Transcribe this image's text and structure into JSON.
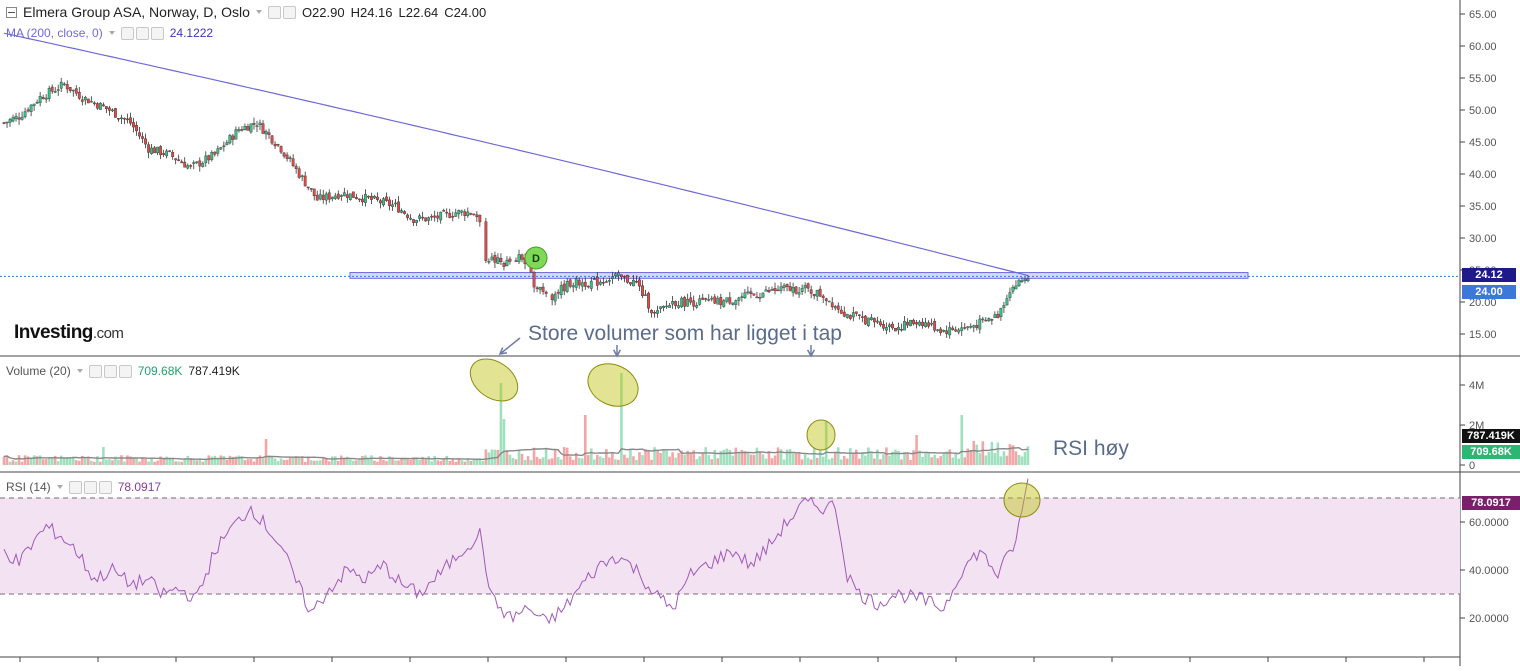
{
  "header": {
    "symbol": "Elmera Group ASA, Norway, D, Oslo",
    "open": "O22.90",
    "high": "H24.16",
    "low": "L22.64",
    "close": "C24.00"
  },
  "ma": {
    "label": "MA (200, close, 0)",
    "value": "24.1222"
  },
  "volume_legend": {
    "label": "Volume (20)",
    "value1": "709.68K",
    "value2": "787.419K"
  },
  "rsi_legend": {
    "label": "RSI (14)",
    "value": "78.0917"
  },
  "logo": {
    "brand": "Investing",
    "suffix": ".com"
  },
  "annotations": {
    "volume_note": "Store volumer som har ligget i tap",
    "rsi_note": "RSI høy",
    "dividend_marker": "D"
  },
  "price_tags": {
    "ma": "24.12",
    "close": "24.00"
  },
  "volume_tags": {
    "ma": "787.419K",
    "vol": "709.68K"
  },
  "rsi_tag": "78.0917",
  "colors": {
    "up": "#38c088",
    "down": "#e24a4a",
    "ma_line": "#6e6ad8",
    "rsi_line": "#a05ab8",
    "rsi_band": "#f2e2f2",
    "highlight": "#bfc40f",
    "zone": "#c8c8f0"
  },
  "chart_data": [
    {
      "type": "candlestick",
      "title": "Elmera Group ASA, Norway, D, Oslo",
      "ylim": [
        11,
        67
      ],
      "y_ticks": [
        "65.00",
        "60.00",
        "55.00",
        "50.00",
        "45.00",
        "40.00",
        "35.00",
        "30.00",
        "25.00",
        "20.00",
        "15.00"
      ],
      "y_tick_values": [
        65,
        60,
        55,
        50,
        45,
        40,
        35,
        30,
        25,
        20,
        15
      ],
      "n_bars": 255,
      "price_anchors": [
        [
          0,
          48
        ],
        [
          5,
          49
        ],
        [
          12,
          52
        ],
        [
          20,
          54
        ],
        [
          26,
          52
        ],
        [
          35,
          50
        ],
        [
          42,
          48
        ],
        [
          48,
          44
        ],
        [
          55,
          43
        ],
        [
          62,
          41
        ],
        [
          70,
          43
        ],
        [
          78,
          47
        ],
        [
          84,
          48
        ],
        [
          92,
          44
        ],
        [
          98,
          40
        ],
        [
          104,
          36
        ],
        [
          112,
          37
        ],
        [
          122,
          36
        ],
        [
          130,
          35
        ],
        [
          136,
          33
        ],
        [
          142,
          33
        ],
        [
          150,
          34
        ],
        [
          156,
          34
        ],
        [
          158,
          33
        ],
        [
          160,
          27
        ],
        [
          166,
          26
        ],
        [
          172,
          27
        ],
        [
          176,
          23
        ],
        [
          182,
          21
        ],
        [
          188,
          23
        ],
        [
          196,
          23
        ],
        [
          203,
          24
        ],
        [
          210,
          23
        ],
        [
          216,
          18
        ],
        [
          222,
          20
        ],
        [
          230,
          20
        ],
        [
          238,
          20
        ],
        [
          248,
          21
        ],
        [
          258,
          22
        ],
        [
          266,
          22
        ],
        [
          272,
          21
        ],
        [
          280,
          18
        ],
        [
          288,
          17
        ],
        [
          296,
          16
        ],
        [
          304,
          17
        ],
        [
          312,
          15.5
        ],
        [
          320,
          16
        ],
        [
          326,
          17
        ],
        [
          330,
          18
        ],
        [
          334,
          22
        ],
        [
          340,
          24
        ]
      ],
      "ma200": {
        "label": "MA (200, close, 0)",
        "start": 62,
        "end": 24.1222
      },
      "zone": {
        "from": 23.7,
        "to": 24.6
      },
      "last_close": 24.0
    },
    {
      "type": "bar",
      "title": "Volume (20)",
      "ylim": [
        0,
        5000000
      ],
      "y_ticks": [
        "4M",
        "2M",
        "0"
      ],
      "y_tick_values": [
        4000000,
        2000000,
        0
      ],
      "spikes": [
        {
          "bar": 165,
          "value": 4100000
        },
        {
          "bar": 166,
          "value": 2300000
        },
        {
          "bar": 205,
          "value": 4600000
        },
        {
          "bar": 193,
          "value": 2500000
        },
        {
          "bar": 273,
          "value": 2200000
        },
        {
          "bar": 318,
          "value": 2500000
        },
        {
          "bar": 303,
          "value": 1500000
        },
        {
          "bar": 338,
          "value": 3700000
        },
        {
          "bar": 340,
          "value": 1900000
        },
        {
          "bar": 87,
          "value": 1300000
        },
        {
          "bar": 33,
          "value": 900000
        }
      ],
      "latest_volume": "709.68K",
      "latest_ma": "787.419K"
    },
    {
      "type": "line",
      "title": "RSI (14)",
      "ylim": [
        15,
        85
      ],
      "y_ticks": [
        "60.0000",
        "40.0000",
        "20.0000"
      ],
      "y_tick_values": [
        60,
        40,
        20
      ],
      "bands": [
        30,
        70
      ],
      "rsi_anchors": [
        [
          0,
          48
        ],
        [
          5,
          43
        ],
        [
          10,
          52
        ],
        [
          14,
          58
        ],
        [
          19,
          54
        ],
        [
          24,
          48
        ],
        [
          30,
          36
        ],
        [
          36,
          40
        ],
        [
          42,
          34
        ],
        [
          48,
          36
        ],
        [
          52,
          30
        ],
        [
          58,
          32
        ],
        [
          64,
          28
        ],
        [
          70,
          48
        ],
        [
          76,
          58
        ],
        [
          82,
          66
        ],
        [
          86,
          60
        ],
        [
          92,
          50
        ],
        [
          96,
          38
        ],
        [
          102,
          22
        ],
        [
          108,
          32
        ],
        [
          114,
          40
        ],
        [
          120,
          36
        ],
        [
          126,
          42
        ],
        [
          132,
          34
        ],
        [
          138,
          30
        ],
        [
          146,
          40
        ],
        [
          152,
          48
        ],
        [
          158,
          55
        ],
        [
          162,
          28
        ],
        [
          168,
          20
        ],
        [
          174,
          24
        ],
        [
          180,
          18
        ],
        [
          186,
          24
        ],
        [
          192,
          34
        ],
        [
          198,
          42
        ],
        [
          204,
          46
        ],
        [
          210,
          40
        ],
        [
          216,
          30
        ],
        [
          222,
          24
        ],
        [
          228,
          38
        ],
        [
          236,
          44
        ],
        [
          242,
          48
        ],
        [
          248,
          42
        ],
        [
          254,
          50
        ],
        [
          260,
          60
        ],
        [
          266,
          68
        ],
        [
          272,
          66
        ],
        [
          276,
          67
        ],
        [
          280,
          38
        ],
        [
          284,
          30
        ],
        [
          290,
          26
        ],
        [
          296,
          30
        ],
        [
          304,
          28
        ],
        [
          312,
          24
        ],
        [
          318,
          40
        ],
        [
          324,
          48
        ],
        [
          330,
          38
        ],
        [
          336,
          52
        ],
        [
          340,
          78.0917
        ]
      ]
    }
  ]
}
